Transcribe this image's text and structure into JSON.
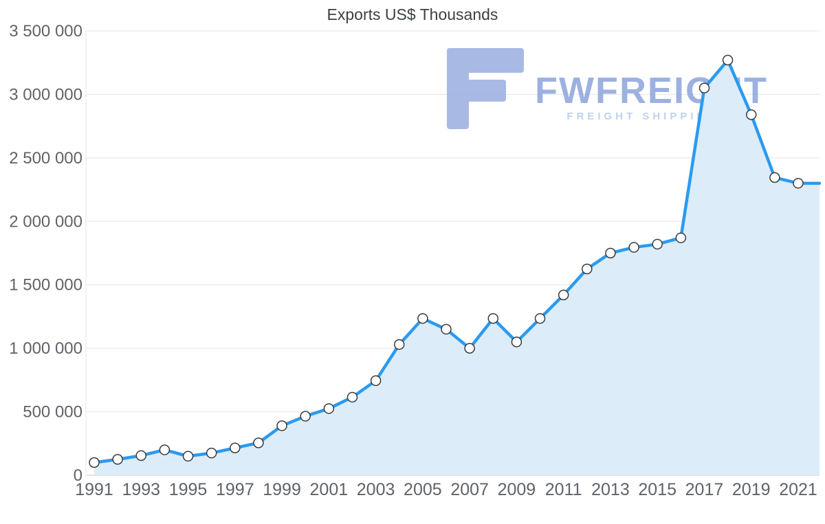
{
  "page": {
    "title": "Exports US$ Thousands"
  },
  "watermark": {
    "brand": "FWFREIGHT",
    "subtitle": "FREIGHT SHIPPING"
  },
  "colors": {
    "line": "#2b9af0",
    "area": "#dcecf9",
    "marker_fill": "#ffffff",
    "marker_stroke": "#3b3b3b",
    "grid": "#e4e4e4",
    "axis_line": "#c9c9c9",
    "tick_text": "#5f6368",
    "title_text": "#3c4043",
    "watermark_brand_blue": "#8ca4dc",
    "watermark_subtitle_blue": "#b5cbea",
    "logo_blue": "#9aade0"
  },
  "chart_data": {
    "type": "area",
    "title": "Exports US$ Thousands",
    "xlabel": "",
    "ylabel": "",
    "grid": true,
    "legend": false,
    "ylim": [
      0,
      3500000
    ],
    "x": [
      1991,
      1992,
      1993,
      1994,
      1995,
      1996,
      1997,
      1998,
      1999,
      2000,
      2001,
      2002,
      2003,
      2004,
      2005,
      2006,
      2007,
      2008,
      2009,
      2010,
      2011,
      2012,
      2013,
      2014,
      2015,
      2016,
      2017,
      2018,
      2019,
      2020,
      2021
    ],
    "values": [
      100000,
      125000,
      155000,
      200000,
      150000,
      175000,
      215000,
      255000,
      390000,
      465000,
      525000,
      615000,
      745000,
      1030000,
      1235000,
      1150000,
      1000000,
      1235000,
      1050000,
      1235000,
      1420000,
      1625000,
      1750000,
      1795000,
      1820000,
      1870000,
      3050000,
      3270000,
      2840000,
      2345000,
      2300000
    ],
    "yticks": [
      {
        "value": 0,
        "label": "0"
      },
      {
        "value": 500000,
        "label": "500 000"
      },
      {
        "value": 1000000,
        "label": "1 000 000"
      },
      {
        "value": 1500000,
        "label": "1 500 000"
      },
      {
        "value": 2000000,
        "label": "2 000 000"
      },
      {
        "value": 2500000,
        "label": "2 500 000"
      },
      {
        "value": 3000000,
        "label": "3 000 000"
      },
      {
        "value": 3500000,
        "label": "3 500 000"
      }
    ],
    "xticks": [
      1991,
      1993,
      1995,
      1997,
      1999,
      2001,
      2003,
      2005,
      2007,
      2009,
      2011,
      2013,
      2015,
      2017,
      2019,
      2021
    ]
  }
}
